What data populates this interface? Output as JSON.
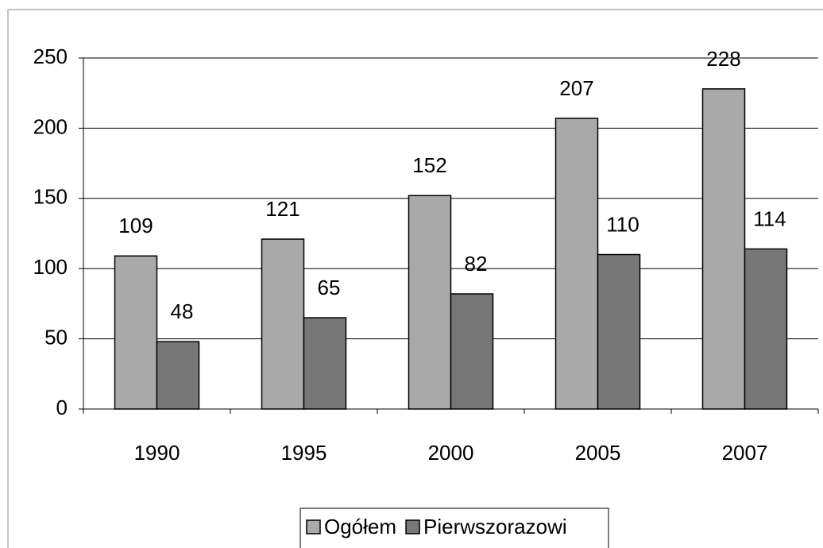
{
  "chart_data": {
    "type": "bar",
    "categories": [
      "1990",
      "1995",
      "2000",
      "2005",
      "2007"
    ],
    "series": [
      {
        "name": "Ogółem",
        "color": "#a9a9a9",
        "values": [
          109,
          121,
          152,
          207,
          228
        ]
      },
      {
        "name": "Pierwszorazowi",
        "color": "#777777",
        "values": [
          48,
          65,
          82,
          110,
          114
        ]
      }
    ],
    "ylim": [
      0,
      250
    ],
    "yticks": [
      0,
      50,
      100,
      150,
      200,
      250
    ],
    "grid": true,
    "legend": "bottom"
  }
}
